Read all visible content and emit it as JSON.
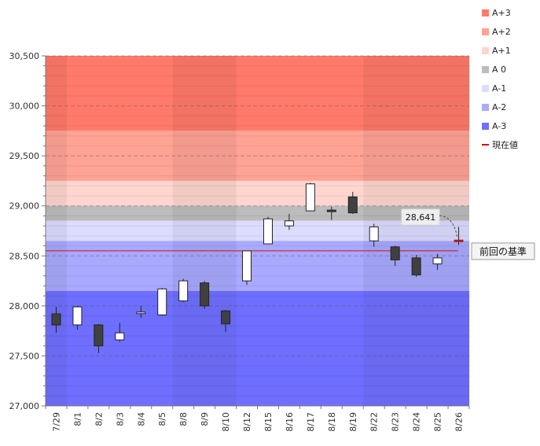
{
  "chart_data": {
    "type": "candlestick",
    "ylim": [
      27000,
      30500
    ],
    "yticks": [
      27000,
      27500,
      28000,
      28500,
      29000,
      29500,
      30000,
      30500
    ],
    "ytick_labels": [
      "27,000",
      "27,500",
      "28,000",
      "28,500",
      "29,000",
      "29,500",
      "30,000",
      "30,500"
    ],
    "grid": true,
    "categories": [
      "7/29",
      "8/1",
      "8/2",
      "8/3",
      "8/4",
      "8/5",
      "8/8",
      "8/9",
      "8/10",
      "8/12",
      "8/15",
      "8/16",
      "8/17",
      "8/18",
      "8/19",
      "8/22",
      "8/23",
      "8/24",
      "8/25",
      "8/26"
    ],
    "candles": [
      {
        "open": 27920,
        "high": 27990,
        "low": 27730,
        "close": 27810
      },
      {
        "open": 27810,
        "high": 28000,
        "low": 27760,
        "close": 27990
      },
      {
        "open": 27810,
        "high": 27820,
        "low": 27530,
        "close": 27600
      },
      {
        "open": 27660,
        "high": 27830,
        "low": 27640,
        "close": 27730
      },
      {
        "open": 27920,
        "high": 28000,
        "low": 27880,
        "close": 27930
      },
      {
        "open": 27910,
        "high": 28180,
        "low": 27900,
        "close": 28170
      },
      {
        "open": 28050,
        "high": 28270,
        "low": 28040,
        "close": 28250
      },
      {
        "open": 28230,
        "high": 28250,
        "low": 27970,
        "close": 28000
      },
      {
        "open": 27950,
        "high": 27960,
        "low": 27740,
        "close": 27820
      },
      {
        "open": 28250,
        "high": 28550,
        "low": 28210,
        "close": 28550
      },
      {
        "open": 28620,
        "high": 28890,
        "low": 28620,
        "close": 28870
      },
      {
        "open": 28800,
        "high": 28920,
        "low": 28760,
        "close": 28850
      },
      {
        "open": 28950,
        "high": 29230,
        "low": 28950,
        "close": 29220
      },
      {
        "open": 28950,
        "high": 28990,
        "low": 28860,
        "close": 28940
      },
      {
        "open": 29090,
        "high": 29140,
        "low": 28920,
        "close": 28930
      },
      {
        "open": 28650,
        "high": 28820,
        "low": 28590,
        "close": 28790
      },
      {
        "open": 28590,
        "high": 28600,
        "low": 28400,
        "close": 28460
      },
      {
        "open": 28480,
        "high": 28510,
        "low": 28290,
        "close": 28310
      },
      {
        "open": 28420,
        "high": 28520,
        "low": 28360,
        "close": 28480
      },
      {
        "open": 28650,
        "high": 28790,
        "low": 28610,
        "close": 28641
      }
    ],
    "bands": [
      {
        "name": "A+3",
        "from": 29750,
        "to": 30500,
        "color": "#ff7a6a"
      },
      {
        "name": "A+2",
        "from": 29250,
        "to": 29750,
        "color": "#ffa395"
      },
      {
        "name": "A+1",
        "from": 29000,
        "to": 29250,
        "color": "#ffd5cf"
      },
      {
        "name": "A 0",
        "from": 28850,
        "to": 29000,
        "color": "#bcbcbc"
      },
      {
        "name": "A-1",
        "from": 28650,
        "to": 28850,
        "color": "#dcdcff"
      },
      {
        "name": "A-2",
        "from": 28150,
        "to": 28650,
        "color": "#a9a9ff"
      },
      {
        "name": "A-3",
        "from": 27000,
        "to": 28150,
        "color": "#6f6fff"
      }
    ],
    "current_price_line": {
      "name": "現在値",
      "value": 28550,
      "color": "#d01010"
    },
    "price_callout": {
      "value": 28641,
      "label": "28,641"
    },
    "reference_label": "前回の基準",
    "legend_position": "top-right",
    "legend": [
      {
        "label": "A+3",
        "color": "#ff7a6a",
        "kind": "box"
      },
      {
        "label": "A+2",
        "color": "#ffa395",
        "kind": "box"
      },
      {
        "label": "A+1",
        "color": "#ffd5cf",
        "kind": "box"
      },
      {
        "label": "A 0",
        "color": "#bcbcbc",
        "kind": "box"
      },
      {
        "label": "A-1",
        "color": "#dcdcff",
        "kind": "box"
      },
      {
        "label": "A-2",
        "color": "#a9a9ff",
        "kind": "box"
      },
      {
        "label": "A-3",
        "color": "#6f6fff",
        "kind": "box"
      },
      {
        "label": "現在値",
        "color": "#d01010",
        "kind": "line"
      }
    ]
  }
}
